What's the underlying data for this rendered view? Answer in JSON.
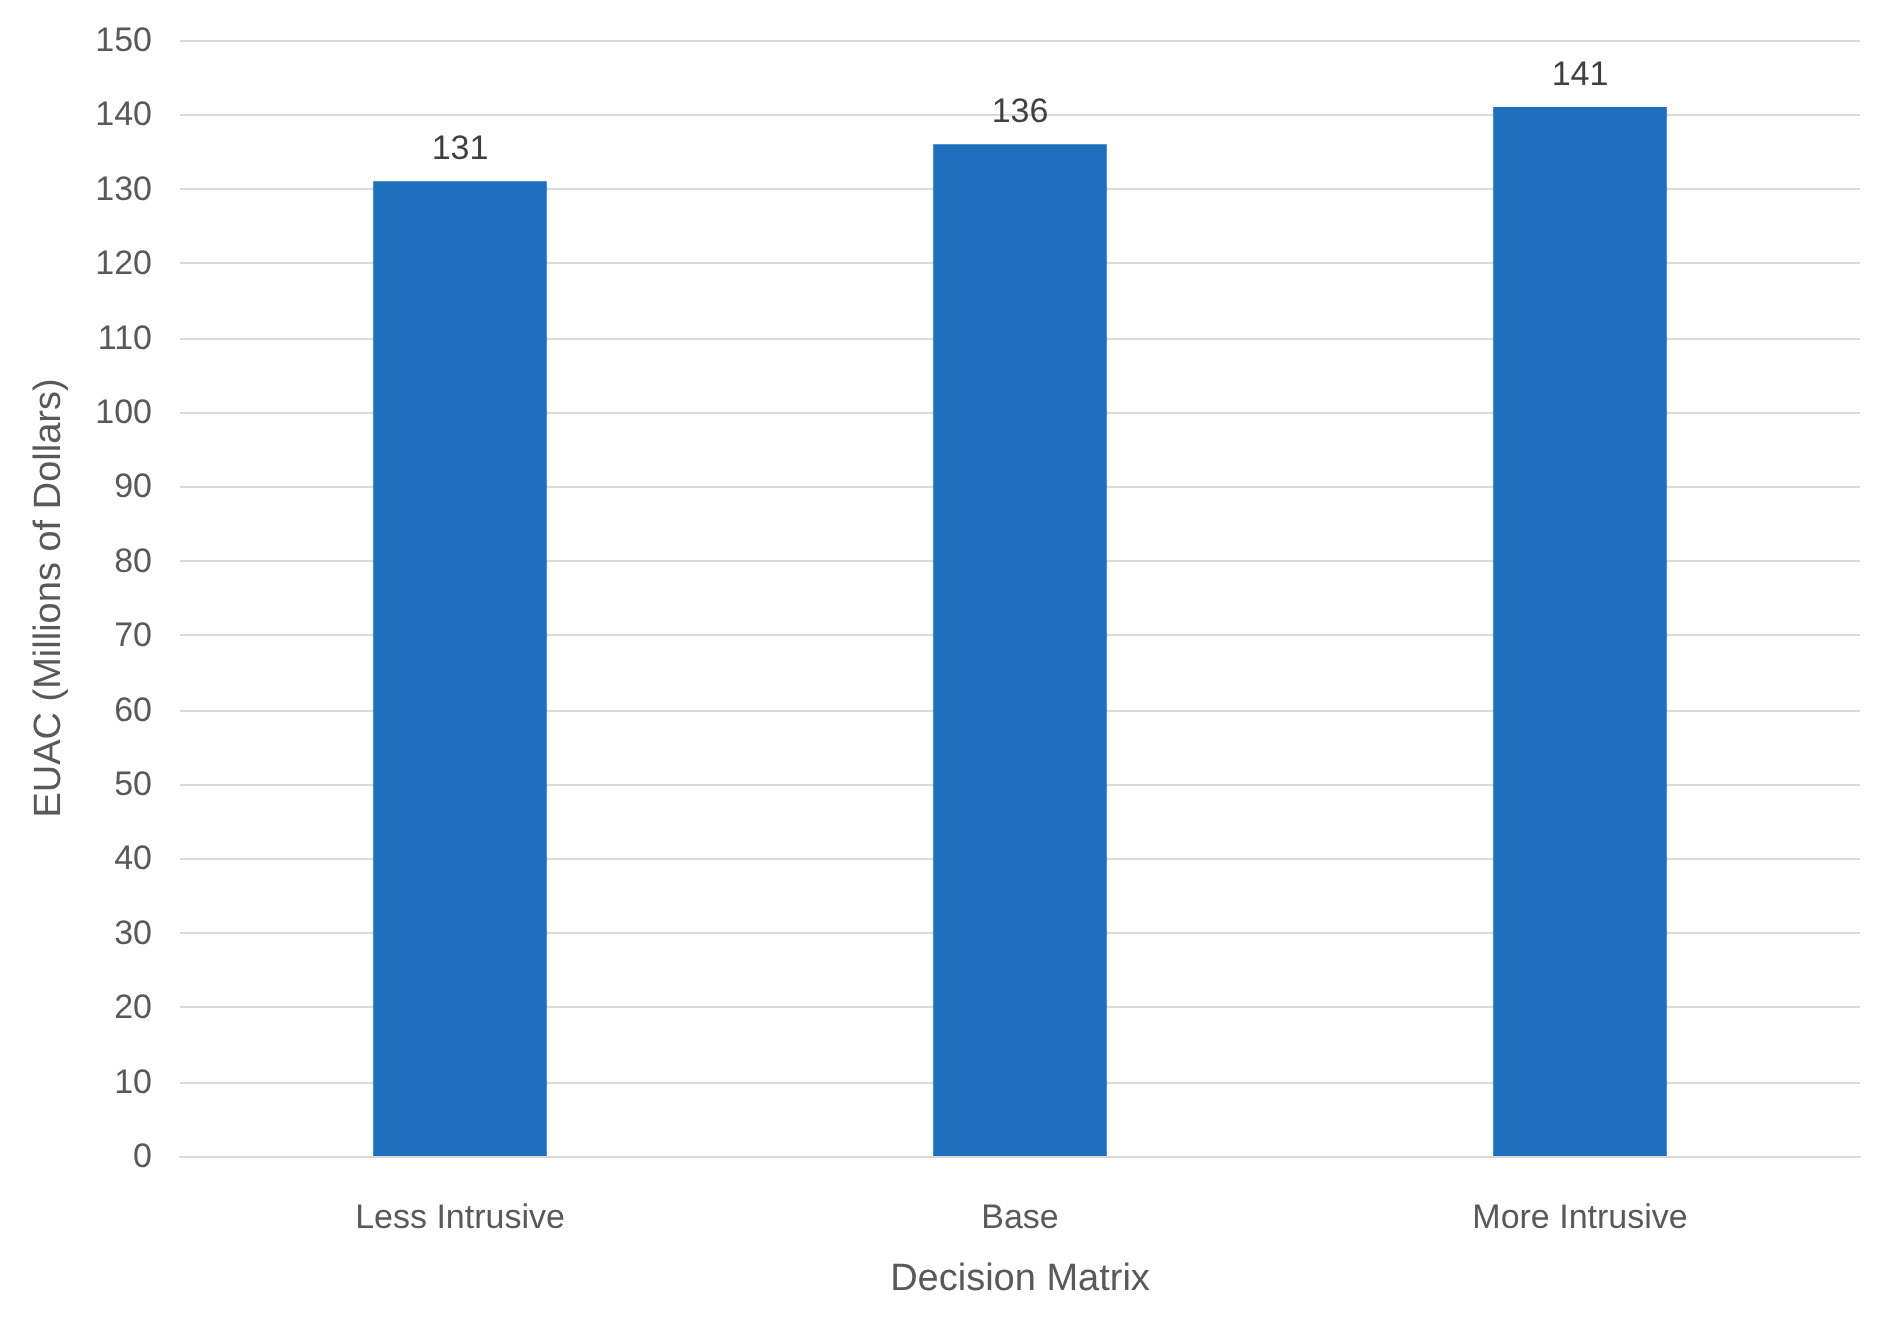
{
  "chart_data": {
    "type": "bar",
    "xlabel": "Decision Matrix",
    "ylabel": "EUAC (Millions of Dollars)",
    "categories": [
      "Less Intrusive",
      "Base",
      "More Intrusive"
    ],
    "values": [
      131,
      136,
      141
    ],
    "color": "#1f6fbf",
    "ylim": [
      0,
      150
    ],
    "yticks": [
      0,
      10,
      20,
      30,
      40,
      50,
      60,
      70,
      80,
      90,
      100,
      110,
      120,
      130,
      140,
      150
    ],
    "grid": "y",
    "data_labels": true
  }
}
